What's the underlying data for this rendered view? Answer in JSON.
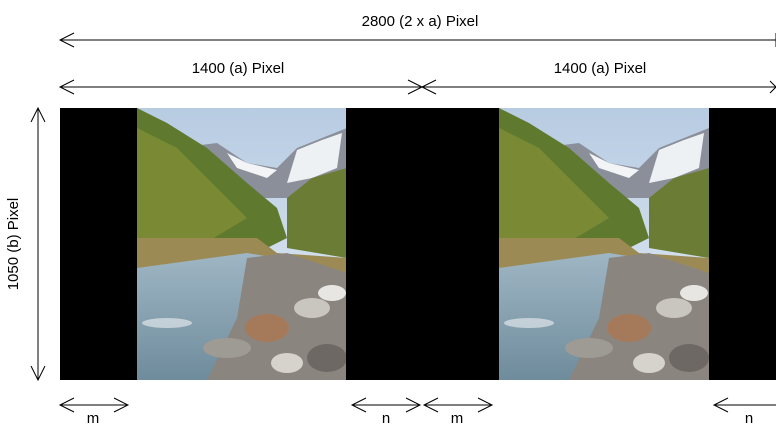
{
  "dimensions": {
    "total_width": "2800 (2 x a) Pixel",
    "half_width_left": "1400 (a) Pixel",
    "half_width_right": "1400 (a) Pixel",
    "height": "1050 (b) Pixel"
  },
  "margins": {
    "left_m": "m",
    "left_n": "n",
    "right_m": "m",
    "right_n": "n"
  }
}
